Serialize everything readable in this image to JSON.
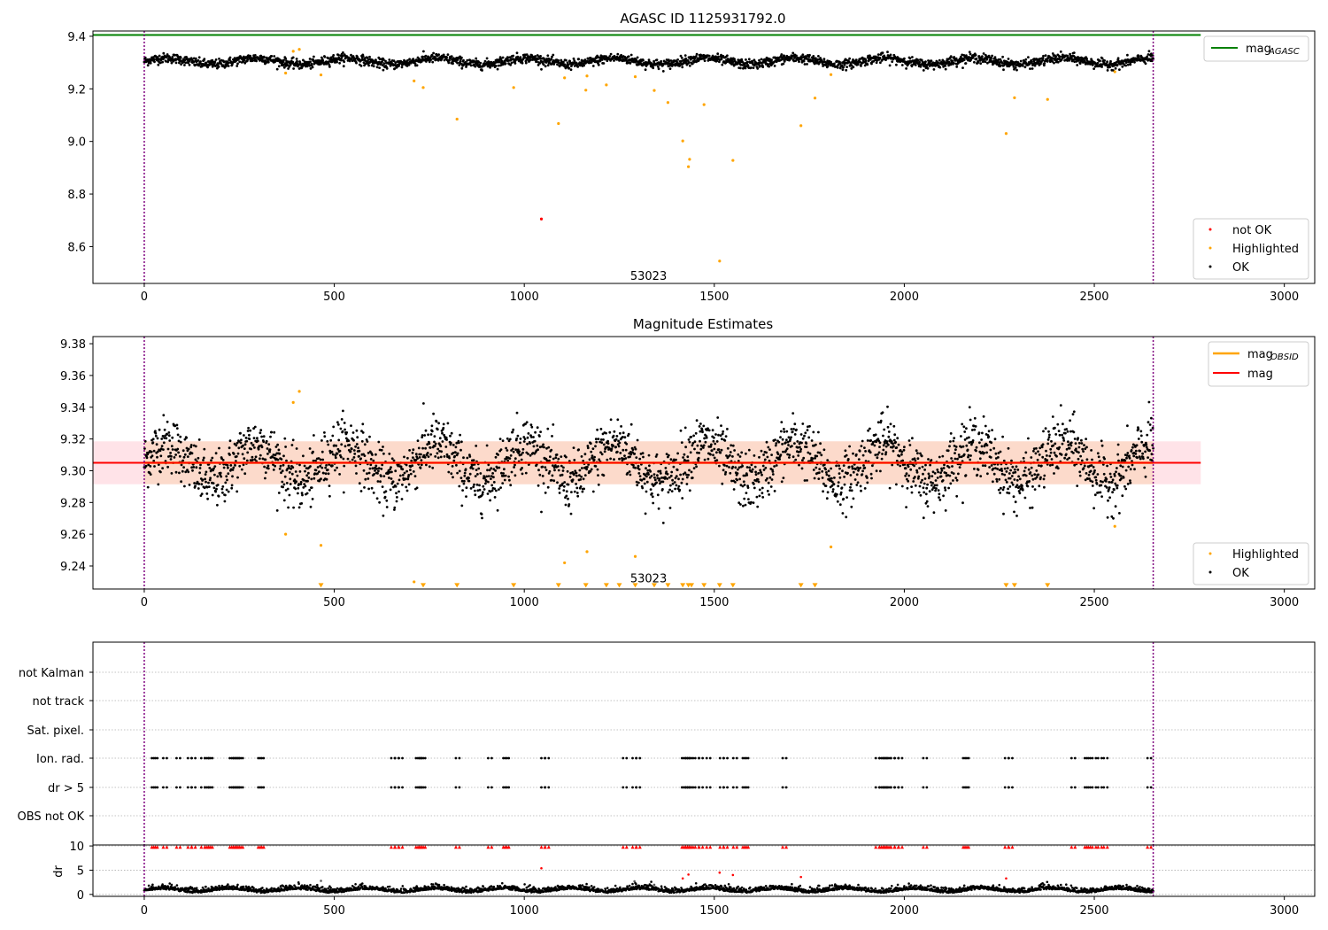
{
  "colors": {
    "ok": "#000000",
    "highlighted": "#ffa500",
    "not_ok": "#ff0000",
    "mag_agasc_line": "#008000",
    "mag_obsid_line": "#ffa500",
    "mag_line": "#ff0000",
    "mag_band": "#ffc0cb",
    "mag_band_overlap": "#fcd8c8",
    "obs_boundary": "#800080",
    "grid": "#b0b0b0"
  },
  "chart_data": [
    {
      "type": "scatter",
      "title": "AGASC ID 1125931792.0",
      "xlim": [
        -135,
        3080
      ],
      "ylim": [
        8.46,
        9.42
      ],
      "xticks": [
        0,
        500,
        1000,
        1500,
        2000,
        2500,
        3000
      ],
      "yticks": [
        8.6,
        8.8,
        9.0,
        9.2,
        9.4
      ],
      "xtick_labels": [
        "0",
        "500",
        "1000",
        "1500",
        "2000",
        "2500",
        "3000"
      ],
      "ytick_labels": [
        "8.6",
        "8.8",
        "9.0",
        "9.2",
        "9.4"
      ],
      "obs_boundaries": [
        0,
        2655
      ],
      "annotation": {
        "text": "53023",
        "x": 1327,
        "y": 8.49
      },
      "lines": [
        {
          "name": "mag_AGASC",
          "y": 9.405,
          "x": [
            -135,
            2780
          ]
        }
      ],
      "legend_lines": [
        {
          "label_main": "mag",
          "label_sub": "AGASC",
          "position": "upper right"
        }
      ],
      "legend_points": {
        "position": "lower right",
        "entries": [
          {
            "label": "not OK",
            "series": "not_ok"
          },
          {
            "label": "Highlighted",
            "series": "highlighted"
          },
          {
            "label": "OK",
            "series": "ok"
          }
        ]
      },
      "ok_series": {
        "n": 2656,
        "x_start": 0,
        "x_end": 2655,
        "base": 9.305,
        "wave_amp": 0.012,
        "noise": 0.009
      },
      "highlighted": {
        "x": [
          372,
          392,
          408,
          465,
          710,
          734,
          823,
          972,
          1090,
          1106,
          1162,
          1165,
          1216,
          1292,
          1342,
          1378,
          1417,
          1432,
          1435,
          1473,
          1514,
          1549,
          1728,
          1765,
          1807,
          2268,
          2290,
          2377,
          2554
        ],
        "y": [
          9.26,
          9.343,
          9.35,
          9.253,
          9.23,
          9.205,
          9.085,
          9.205,
          9.068,
          9.242,
          9.195,
          9.249,
          9.215,
          9.246,
          9.194,
          9.148,
          9.002,
          8.904,
          8.932,
          9.14,
          8.545,
          8.928,
          9.06,
          9.165,
          9.254,
          9.03,
          9.166,
          9.16,
          9.265
        ]
      },
      "not_ok": {
        "x": [
          1045
        ],
        "y": [
          8.705
        ]
      }
    },
    {
      "type": "scatter",
      "title": "Magnitude Estimates",
      "xlim": [
        -135,
        3080
      ],
      "ylim": [
        9.2255,
        9.3845
      ],
      "xticks": [
        0,
        500,
        1000,
        1500,
        2000,
        2500,
        3000
      ],
      "yticks": [
        9.24,
        9.26,
        9.28,
        9.3,
        9.32,
        9.34,
        9.36,
        9.38
      ],
      "xtick_labels": [
        "0",
        "500",
        "1000",
        "1500",
        "2000",
        "2500",
        "3000"
      ],
      "ytick_labels": [
        "9.24",
        "9.26",
        "9.28",
        "9.30",
        "9.32",
        "9.34",
        "9.36",
        "9.38"
      ],
      "obs_boundaries": [
        0,
        2655
      ],
      "annotation": {
        "text": "53023",
        "x": 1327,
        "y": 9.2325
      },
      "mag_obsid": {
        "y": 9.305,
        "x": [
          0,
          2655
        ],
        "band": [
          9.2915,
          9.3185
        ]
      },
      "mag": {
        "y": 9.305,
        "x": [
          -135,
          2780
        ],
        "band": [
          9.2915,
          9.3185
        ]
      },
      "legend_lines": [
        {
          "label_main": "mag",
          "label_sub": "OBSID",
          "series": "mag_obsid",
          "position": "upper right"
        },
        {
          "label_main": "mag",
          "label_sub": "",
          "series": "mag",
          "position": "upper right"
        }
      ],
      "legend_points": {
        "position": "lower right",
        "entries": [
          {
            "label": "Highlighted",
            "series": "highlighted"
          },
          {
            "label": "OK",
            "series": "ok"
          }
        ]
      },
      "ok_series": {
        "n": 2656,
        "x_start": 0,
        "x_end": 2655,
        "base": 9.305,
        "wave_amp": 0.012,
        "noise": 0.009
      },
      "highlighted": {
        "x": [
          372,
          392,
          408,
          465,
          710,
          1106,
          1165,
          1292,
          1807,
          2554
        ],
        "y": [
          9.26,
          9.343,
          9.35,
          9.253,
          9.23,
          9.242,
          9.249,
          9.246,
          9.252,
          9.265
        ]
      },
      "below_range_markers": {
        "x": [
          465,
          734,
          823,
          972,
          1090,
          1162,
          1216,
          1250,
          1292,
          1342,
          1378,
          1417,
          1432,
          1440,
          1473,
          1514,
          1549,
          1728,
          1765,
          2268,
          2290,
          2377
        ],
        "y": 9.2275
      }
    },
    {
      "type": "scatter",
      "title": "",
      "xlim": [
        -135,
        3080
      ],
      "obs_boundaries": [
        0,
        2655
      ],
      "flag_rows": [
        "not Kalman",
        "not track",
        "Sat. pixel.",
        "Ion. rad.",
        "dr > 5",
        "OBS not OK"
      ],
      "flag_points": {
        "Ion. rad.": [
          20,
          25,
          50,
          85,
          115,
          125,
          150,
          160,
          165,
          170,
          225,
          230,
          235,
          240,
          245,
          250,
          300,
          305,
          650,
          660,
          670,
          715,
          720,
          725,
          730,
          820,
          905,
          945,
          950,
          1045,
          1055,
          1260,
          1285,
          1295,
          1415,
          1420,
          1425,
          1430,
          1435,
          1450,
          1460,
          1480,
          1515,
          1525,
          1550,
          1575,
          1580,
          1680,
          1925,
          1935,
          1940,
          1945,
          1950,
          1955,
          1965,
          1975,
          1985,
          2050,
          2155,
          2160,
          2265,
          2275,
          2440,
          2475,
          2480,
          2495,
          2510,
          2525,
          2640
        ],
        "dr > 5": [
          20,
          25,
          50,
          85,
          115,
          125,
          150,
          160,
          165,
          170,
          225,
          230,
          235,
          240,
          245,
          250,
          300,
          305,
          650,
          660,
          670,
          715,
          720,
          725,
          730,
          820,
          905,
          945,
          950,
          1045,
          1055,
          1260,
          1285,
          1295,
          1415,
          1420,
          1425,
          1430,
          1435,
          1450,
          1460,
          1480,
          1515,
          1525,
          1550,
          1575,
          1580,
          1680,
          1925,
          1935,
          1940,
          1945,
          1950,
          1955,
          1965,
          1975,
          1985,
          2050,
          2155,
          2160,
          2265,
          2275,
          2440,
          2475,
          2480,
          2495,
          2510,
          2525,
          2640
        ]
      }
    },
    {
      "type": "scatter",
      "title": "",
      "xlim": [
        -135,
        3080
      ],
      "ylim": [
        -0.4,
        10.2
      ],
      "xticks": [
        0,
        500,
        1000,
        1500,
        2000,
        2500,
        3000
      ],
      "yticks": [
        0,
        5,
        10
      ],
      "xtick_labels": [
        "0",
        "500",
        "1000",
        "1500",
        "2000",
        "2500",
        "3000"
      ],
      "ytick_labels": [
        "0",
        "5",
        "10"
      ],
      "ylabel": "dr",
      "obs_boundaries": [
        0,
        2655
      ],
      "dr_series": {
        "n": 2656,
        "x_start": 0,
        "x_end": 2655,
        "base": 0.7,
        "noise": 0.45
      },
      "dr_highlighted": {
        "x": [
          465,
          1290,
          1342
        ],
        "y": [
          2.8,
          2.7,
          2.0
        ]
      },
      "dr_high_mid": {
        "x": [
          1045,
          1417,
          1432,
          1514,
          1549,
          1728,
          2268
        ],
        "y": [
          5.4,
          3.3,
          4.1,
          4.5,
          4.0,
          3.6,
          3.3
        ]
      },
      "dr_capped_x": [
        20,
        25,
        50,
        85,
        115,
        125,
        150,
        160,
        165,
        170,
        225,
        230,
        235,
        240,
        245,
        250,
        300,
        305,
        650,
        660,
        670,
        715,
        720,
        725,
        730,
        820,
        905,
        945,
        950,
        1045,
        1055,
        1260,
        1285,
        1295,
        1415,
        1420,
        1425,
        1430,
        1435,
        1450,
        1460,
        1480,
        1515,
        1525,
        1550,
        1575,
        1580,
        1680,
        1925,
        1935,
        1940,
        1945,
        1950,
        1955,
        1965,
        1975,
        1985,
        2050,
        2155,
        2160,
        2265,
        2275,
        2440,
        2475,
        2480,
        2495,
        2510,
        2525,
        2640
      ],
      "dr_cap": 9.8
    }
  ]
}
